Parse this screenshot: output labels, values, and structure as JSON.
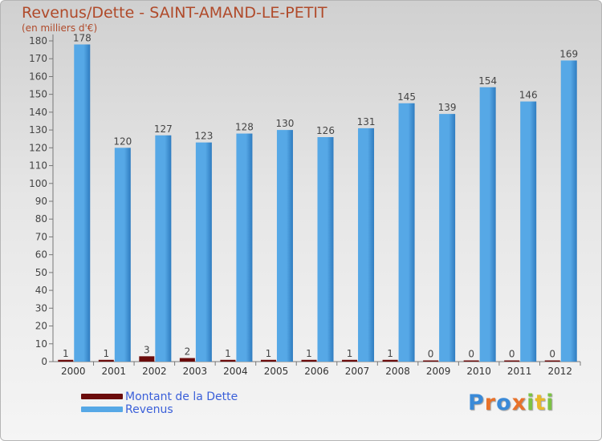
{
  "title": "Revenus/Dette - SAINT-AMAND-LE-PETIT",
  "subtitle": "(en milliers d'€)",
  "colors": {
    "debt": "#6b0c0c",
    "revenue": "#56a8e6",
    "revenue_dark": "#2f7cc0",
    "title": "#b04a2a",
    "legend_text": "#3a5fd9"
  },
  "chart_data": {
    "type": "bar",
    "categories": [
      "2000",
      "2001",
      "2002",
      "2003",
      "2004",
      "2005",
      "2006",
      "2007",
      "2008",
      "2009",
      "2010",
      "2011",
      "2012"
    ],
    "series": [
      {
        "name": "Montant de la Dette",
        "values": [
          1,
          1,
          3,
          2,
          1,
          1,
          1,
          1,
          1,
          0,
          0,
          0,
          0
        ],
        "labels": [
          "1",
          "1",
          "3",
          "2",
          "1",
          "1",
          "1",
          "1",
          "1",
          "0",
          "0",
          "0",
          "0"
        ]
      },
      {
        "name": "Revenus",
        "values": [
          178,
          120,
          127,
          123,
          128,
          130,
          126,
          131,
          145,
          139,
          154,
          146,
          169
        ],
        "labels": [
          "178",
          "120",
          "127",
          "123",
          "128",
          "130",
          "126",
          "131",
          "145",
          "139",
          "154",
          "146",
          "169"
        ]
      }
    ],
    "ylim": [
      0,
      180
    ],
    "yticks": [
      0,
      10,
      20,
      30,
      40,
      50,
      60,
      70,
      80,
      90,
      100,
      110,
      120,
      130,
      140,
      150,
      160,
      170,
      180
    ],
    "grid": false,
    "legend": "bottom-left"
  },
  "legend": [
    {
      "label": "Montant de la Dette",
      "color": "#6b0c0c"
    },
    {
      "label": "Revenus",
      "color": "#56a8e6"
    }
  ],
  "brand": {
    "letters": [
      "P",
      "r",
      "o",
      "x",
      "i",
      "t",
      "i"
    ],
    "colors": [
      "#3a8ad8",
      "#e8722a",
      "#3a8ad8",
      "#e8722a",
      "#7cc244",
      "#e8b92a",
      "#7cc244"
    ]
  }
}
